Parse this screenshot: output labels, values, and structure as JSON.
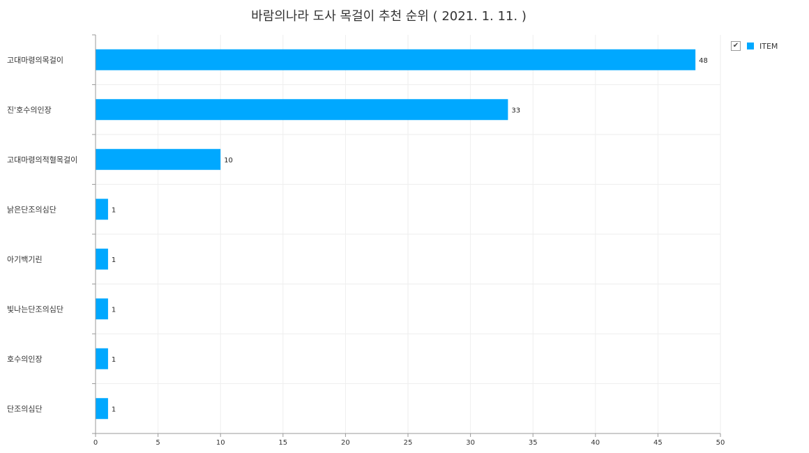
{
  "chart_data": {
    "type": "bar",
    "orientation": "horizontal",
    "title": "바람의나라 도사 목걸이 추천 순위 ( 2021. 1. 11. )",
    "categories": [
      "고대마령의목걸이",
      "진'호수의인장",
      "고대마령의적혈목걸이",
      "낡은단조의심단",
      "아기백기린",
      "빛나는단조의심단",
      "호수의인장",
      "단조의심단"
    ],
    "series": [
      {
        "name": "ITEM",
        "values": [
          48,
          33,
          10,
          1,
          1,
          1,
          1,
          1
        ],
        "color": "#00a8ff"
      }
    ],
    "xlim": [
      0,
      50
    ],
    "x_ticks": [
      0,
      5,
      10,
      15,
      20,
      25,
      30,
      35,
      40,
      45,
      50
    ],
    "grid": true,
    "legend_position": "top-right",
    "data_labels": true
  },
  "legend": {
    "checked_icon": "check-icon"
  },
  "colors": {
    "axis": "#999999",
    "grid": "#eeeeee",
    "bar": "#00a8ff"
  }
}
